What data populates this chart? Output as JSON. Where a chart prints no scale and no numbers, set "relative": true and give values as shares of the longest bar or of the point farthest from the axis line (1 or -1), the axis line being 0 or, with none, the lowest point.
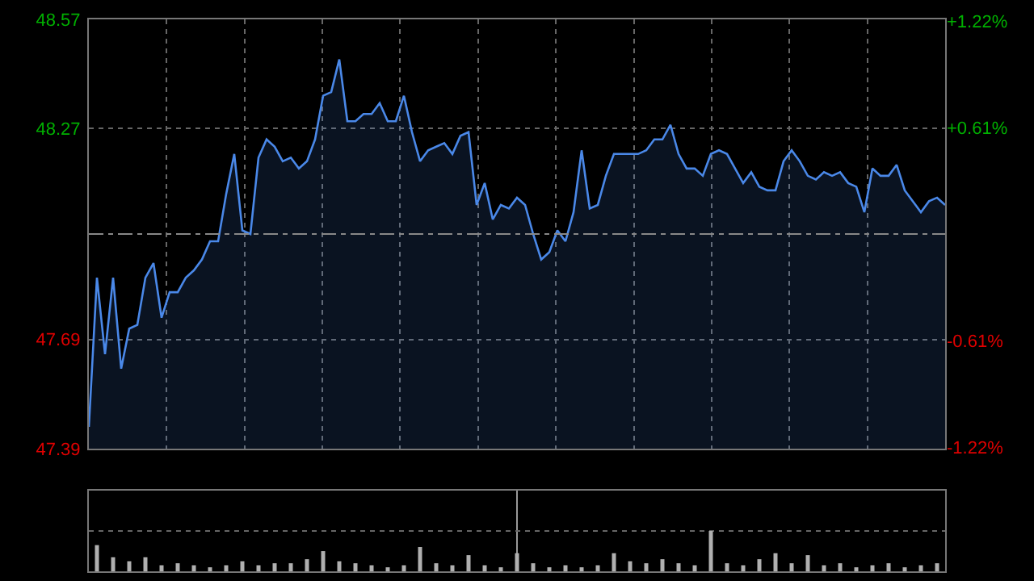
{
  "chart_data": [
    {
      "type": "area",
      "categories": [
        null,
        null,
        null,
        null,
        null,
        null,
        null,
        null,
        null,
        null,
        null,
        null,
        null,
        null,
        null,
        null,
        null,
        null,
        null,
        null,
        null,
        null,
        null,
        null,
        null,
        null,
        null,
        null,
        null,
        null,
        null,
        null,
        null,
        null,
        null,
        null,
        null,
        null,
        null,
        null,
        null,
        null,
        null,
        null,
        null,
        null,
        null,
        null,
        null,
        null,
        null,
        null,
        null,
        null,
        null,
        null,
        null,
        null,
        null,
        null,
        null,
        null,
        null,
        null,
        null,
        null,
        null,
        null,
        null,
        null,
        null,
        null,
        null,
        null,
        null,
        null,
        null,
        null,
        null,
        null,
        null,
        null,
        null,
        null,
        null,
        null,
        null,
        null,
        null,
        null,
        null,
        null,
        null,
        null,
        null,
        null,
        null,
        null,
        null,
        null,
        null,
        null,
        null,
        null,
        null,
        null,
        null
      ],
      "series": [
        {
          "color": "#4a88e8",
          "values": [
            47.45,
            47.86,
            47.65,
            47.86,
            47.61,
            47.72,
            47.73,
            47.86,
            47.9,
            47.75,
            47.82,
            47.82,
            47.86,
            47.88,
            47.91,
            47.96,
            47.96,
            48.09,
            48.2,
            47.99,
            47.98,
            48.19,
            48.24,
            48.22,
            48.18,
            48.19,
            48.16,
            48.18,
            48.24,
            48.36,
            48.37,
            48.46,
            48.29,
            48.29,
            48.31,
            48.31,
            48.34,
            48.29,
            48.29,
            48.36,
            48.26,
            48.18,
            48.21,
            48.22,
            48.23,
            48.2,
            48.25,
            48.26,
            48.06,
            48.12,
            48.02,
            48.06,
            48.05,
            48.08,
            48.06,
            47.98,
            47.91,
            47.93,
            47.99,
            47.96,
            48.04,
            48.21,
            48.05,
            48.06,
            48.14,
            48.2,
            48.2,
            48.2,
            48.2,
            48.21,
            48.24,
            48.24,
            48.28,
            48.2,
            48.16,
            48.16,
            48.14,
            48.2,
            48.21,
            48.2,
            48.16,
            48.12,
            48.15,
            48.11,
            48.1,
            48.1,
            48.18,
            48.21,
            48.18,
            48.14,
            48.13,
            48.15,
            48.14,
            48.15,
            48.12,
            48.11,
            48.04,
            48.16,
            48.14,
            48.14,
            48.17,
            48.1,
            48.07,
            48.04,
            48.07,
            48.08,
            48.06
          ]
        }
      ],
      "ylim": [
        47.39,
        48.57
      ],
      "yticks": [
        47.39,
        47.69,
        48.27,
        48.57
      ],
      "y2lim": [
        -1.23,
        1.23
      ],
      "y2ticks": [
        {
          "value": -1.22,
          "label": "-1.22%"
        },
        {
          "value": -0.61,
          "label": "-0.61%"
        },
        {
          "value": 0.61,
          "label": "+0.61%"
        },
        {
          "value": 1.22,
          "label": "+1.22%"
        }
      ],
      "ref_lines": [
        {
          "axis": "y",
          "value": 47.98,
          "color": "#888888",
          "line_style": "dashed"
        }
      ],
      "grid": true
    },
    {
      "type": "bar",
      "relative": true,
      "color": "#b0b0b0",
      "grid": true,
      "categories": [
        null,
        null,
        null,
        null,
        null,
        null,
        null,
        null,
        null,
        null,
        null,
        null,
        null,
        null,
        null,
        null,
        null,
        null,
        null,
        null,
        null,
        null,
        null,
        null,
        null,
        null,
        null,
        null,
        null,
        null,
        null,
        null,
        null,
        null,
        null,
        null,
        null,
        null,
        null,
        null,
        null,
        null,
        null,
        null,
        null,
        null,
        null,
        null,
        null,
        null,
        null,
        null,
        null
      ],
      "values": [
        0.65,
        0.35,
        0.25,
        0.35,
        0.15,
        0.2,
        0.15,
        0.1,
        0.15,
        0.25,
        0.15,
        0.2,
        0.2,
        0.3,
        0.5,
        0.25,
        0.2,
        0.15,
        0.1,
        0.15,
        0.6,
        0.2,
        0.15,
        0.4,
        0.15,
        0.1,
        0.45,
        0.2,
        0.1,
        0.15,
        0.1,
        0.15,
        0.45,
        0.25,
        0.2,
        0.3,
        0.2,
        0.15,
        1,
        0.2,
        0.15,
        0.3,
        0.45,
        0.2,
        0.4,
        0.15,
        0.2,
        0.1,
        0.15,
        0.2,
        0.1,
        0.15,
        0.2
      ]
    }
  ]
}
